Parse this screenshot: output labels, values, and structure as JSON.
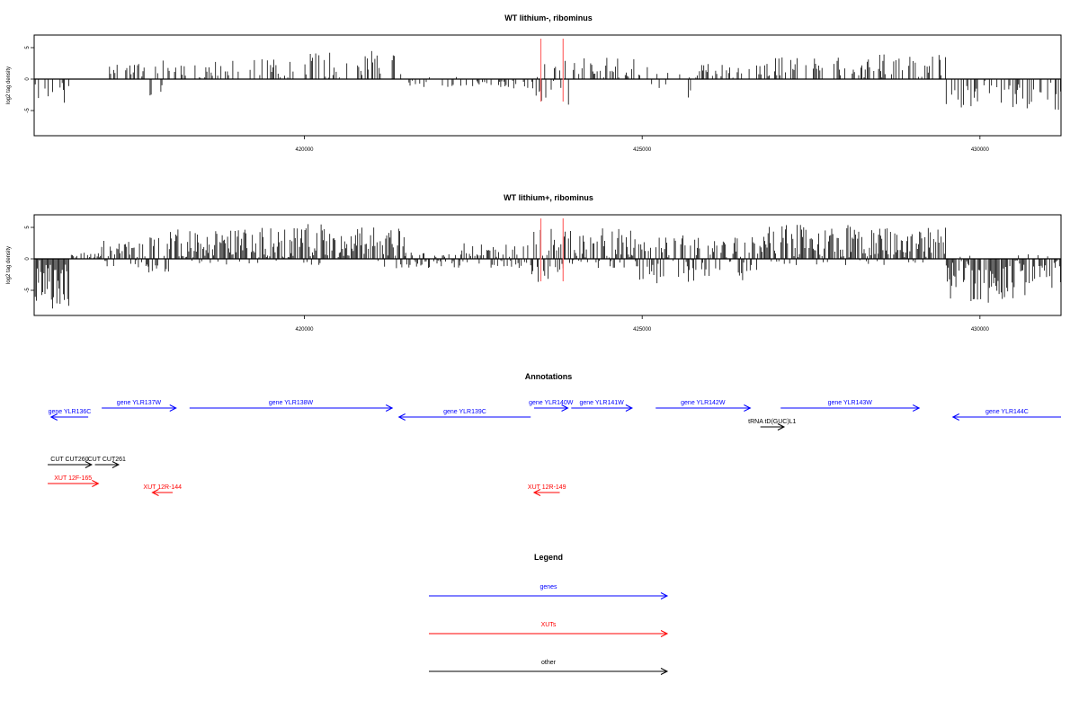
{
  "chart_data": [
    {
      "type": "bar",
      "title": "WT lithium-, ribominus",
      "ylabel": "log2 tag density",
      "xlim": [
        416000,
        431200
      ],
      "ylim": [
        -9,
        7
      ],
      "x_ticks": [
        420000,
        425000,
        430000
      ],
      "x_tick_labels": [
        "420000",
        "425000",
        "430000"
      ],
      "y_ticks": [
        5,
        0,
        -5
      ],
      "y_tick_labels": [
        "5",
        "0",
        "-5"
      ],
      "markers": [
        423500,
        423830
      ],
      "marker_color": "#ff6b6b",
      "segments": [
        {
          "x0": 416000,
          "x1": 416520,
          "min": -4.0,
          "max": 0
        },
        {
          "x0": 416520,
          "x1": 417100,
          "min": 0,
          "max": 0
        },
        {
          "x0": 417100,
          "x1": 417700,
          "min": 0,
          "max": 2.5
        },
        {
          "x0": 417700,
          "x1": 417950,
          "min": -3.0,
          "max": 3.0
        },
        {
          "x0": 417950,
          "x1": 418700,
          "min": 0,
          "max": 3.0
        },
        {
          "x0": 418700,
          "x1": 419800,
          "min": 0,
          "max": 3.5
        },
        {
          "x0": 419800,
          "x1": 420500,
          "min": 0,
          "max": 4.5
        },
        {
          "x0": 420500,
          "x1": 421500,
          "min": 0,
          "max": 4.5
        },
        {
          "x0": 421500,
          "x1": 422300,
          "min": -1.5,
          "max": 0.5
        },
        {
          "x0": 422300,
          "x1": 423350,
          "min": -1.5,
          "max": 0
        },
        {
          "x0": 423350,
          "x1": 423950,
          "min": -4.5,
          "max": 3.0
        },
        {
          "x0": 423950,
          "x1": 424900,
          "min": 0,
          "max": 3.5
        },
        {
          "x0": 424900,
          "x1": 425800,
          "min": -3.0,
          "max": 2.0
        },
        {
          "x0": 425800,
          "x1": 426800,
          "min": 0,
          "max": 2.5
        },
        {
          "x0": 426800,
          "x1": 428500,
          "min": 0,
          "max": 3.5
        },
        {
          "x0": 428500,
          "x1": 429500,
          "min": 0,
          "max": 4.0
        },
        {
          "x0": 429500,
          "x1": 431200,
          "min": -5.0,
          "max": 0
        }
      ]
    },
    {
      "type": "bar",
      "title": "WT lithium+, ribominus",
      "ylabel": "log2 tag density",
      "xlim": [
        416000,
        431200
      ],
      "ylim": [
        -9,
        7
      ],
      "x_ticks": [
        420000,
        425000,
        430000
      ],
      "x_tick_labels": [
        "420000",
        "425000",
        "430000"
      ],
      "y_ticks": [
        5,
        0,
        -5
      ],
      "y_tick_labels": [
        "5",
        "0",
        "-5"
      ],
      "markers": [
        423500,
        423830
      ],
      "marker_color": "#ff6b6b",
      "segments": [
        {
          "x0": 416000,
          "x1": 416550,
          "min": -8.5,
          "max": 0
        },
        {
          "x0": 416550,
          "x1": 417000,
          "min": 0,
          "max": 1.0
        },
        {
          "x0": 417000,
          "x1": 417700,
          "min": -1.5,
          "max": 3.0
        },
        {
          "x0": 417700,
          "x1": 418000,
          "min": -2.5,
          "max": 3.5
        },
        {
          "x0": 418000,
          "x1": 419800,
          "min": -1.0,
          "max": 5.0
        },
        {
          "x0": 419800,
          "x1": 420500,
          "min": -1.0,
          "max": 6.0
        },
        {
          "x0": 420500,
          "x1": 421500,
          "min": -1.5,
          "max": 5.0
        },
        {
          "x0": 421500,
          "x1": 422300,
          "min": -1.5,
          "max": 1.0
        },
        {
          "x0": 422300,
          "x1": 423350,
          "min": -1.5,
          "max": 2.5
        },
        {
          "x0": 423350,
          "x1": 423950,
          "min": -4.0,
          "max": 5.0
        },
        {
          "x0": 423950,
          "x1": 424900,
          "min": -1.5,
          "max": 5.0
        },
        {
          "x0": 424900,
          "x1": 425800,
          "min": -4.0,
          "max": 4.0
        },
        {
          "x0": 425800,
          "x1": 426800,
          "min": -3.5,
          "max": 3.5
        },
        {
          "x0": 426800,
          "x1": 428500,
          "min": -1.0,
          "max": 5.5
        },
        {
          "x0": 428500,
          "x1": 429500,
          "min": -1.0,
          "max": 5.0
        },
        {
          "x0": 429500,
          "x1": 431200,
          "min": -7.0,
          "max": 1.0
        }
      ]
    }
  ],
  "annotations": {
    "title": "Annotations",
    "xlim": [
      416000,
      431200
    ],
    "colors": {
      "gene": "#0000ff",
      "xut": "#ff0000",
      "other": "#000000"
    },
    "features": [
      {
        "label": "gene YLR136C",
        "category": "gene",
        "start": 416800,
        "end": 416250,
        "row": 1
      },
      {
        "label": "gene YLR137W",
        "category": "gene",
        "start": 417000,
        "end": 418100,
        "row": 0
      },
      {
        "label": "gene YLR138W",
        "category": "gene",
        "start": 418300,
        "end": 421300,
        "row": 0
      },
      {
        "label": "gene YLR139C",
        "category": "gene",
        "start": 423350,
        "end": 421400,
        "row": 1
      },
      {
        "label": "gene YLR140W",
        "category": "gene",
        "start": 423400,
        "end": 423900,
        "row": 0
      },
      {
        "label": "gene YLR141W",
        "category": "gene",
        "start": 423950,
        "end": 424850,
        "row": 0
      },
      {
        "label": "gene YLR142W",
        "category": "gene",
        "start": 425200,
        "end": 426600,
        "row": 0
      },
      {
        "label": "gene YLR143W",
        "category": "gene",
        "start": 427050,
        "end": 429100,
        "row": 0
      },
      {
        "label": "gene YLR144C",
        "category": "gene",
        "start": 431200,
        "end": 429600,
        "row": 1
      },
      {
        "label": "tRNA tD(GUC)L1",
        "category": "other",
        "start": 426750,
        "end": 427100,
        "row": 2
      },
      {
        "label": "CUT CUT260",
        "category": "other",
        "start": 416200,
        "end": 416850,
        "row": 3
      },
      {
        "label": "CUT CUT261",
        "category": "other",
        "start": 416900,
        "end": 417250,
        "row": 3
      },
      {
        "label": "XUT 12F-165",
        "category": "xut",
        "start": 416200,
        "end": 416950,
        "row": 4
      },
      {
        "label": "XUT 12R-144",
        "category": "xut",
        "start": 418050,
        "end": 417750,
        "row": 5
      },
      {
        "label": "XUT 12R-149",
        "category": "xut",
        "start": 423780,
        "end": 423400,
        "row": 5
      }
    ]
  },
  "legend": {
    "title": "Legend",
    "items": [
      {
        "label": "genes",
        "category": "gene"
      },
      {
        "label": "XUTs",
        "category": "xut"
      },
      {
        "label": "other",
        "category": "other"
      }
    ]
  }
}
